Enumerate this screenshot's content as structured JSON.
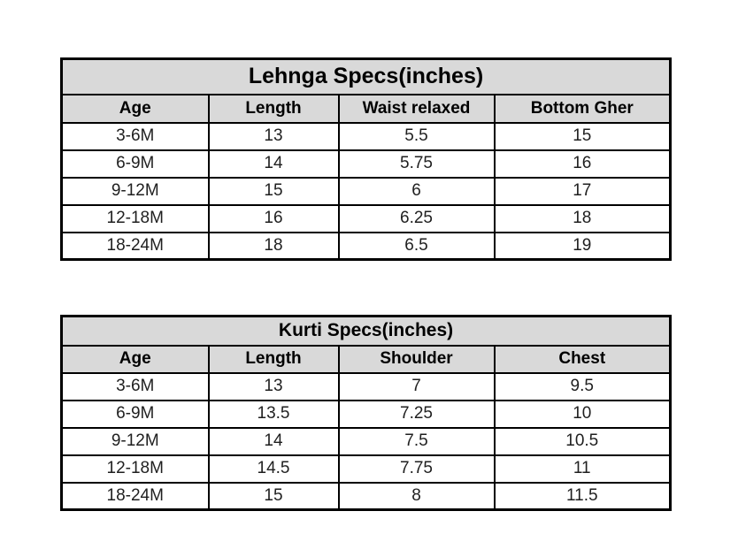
{
  "colors": {
    "page_background": "#ffffff",
    "header_background": "#d9d9d9",
    "border": "#000000",
    "cell_background": "#ffffff",
    "header_text": "#000000",
    "data_text": "#1f1f1f"
  },
  "tables": [
    {
      "title": "Lehnga Specs(inches)",
      "columns": [
        "Age",
        "Length",
        "Waist relaxed",
        "Bottom Gher"
      ],
      "rows": [
        [
          "3-6M",
          "13",
          "5.5",
          "15"
        ],
        [
          "6-9M",
          "14",
          "5.75",
          "16"
        ],
        [
          "9-12M",
          "15",
          "6",
          "17"
        ],
        [
          "12-18M",
          "16",
          "6.25",
          "18"
        ],
        [
          "18-24M",
          "18",
          "6.5",
          "19"
        ]
      ]
    },
    {
      "title": "Kurti Specs(inches)",
      "columns": [
        "Age",
        "Length",
        "Shoulder",
        "Chest"
      ],
      "rows": [
        [
          "3-6M",
          "13",
          "7",
          "9.5"
        ],
        [
          "6-9M",
          "13.5",
          "7.25",
          "10"
        ],
        [
          "9-12M",
          "14",
          "7.5",
          "10.5"
        ],
        [
          "12-18M",
          "14.5",
          "7.75",
          "11"
        ],
        [
          "18-24M",
          "15",
          "8",
          "11.5"
        ]
      ]
    }
  ]
}
